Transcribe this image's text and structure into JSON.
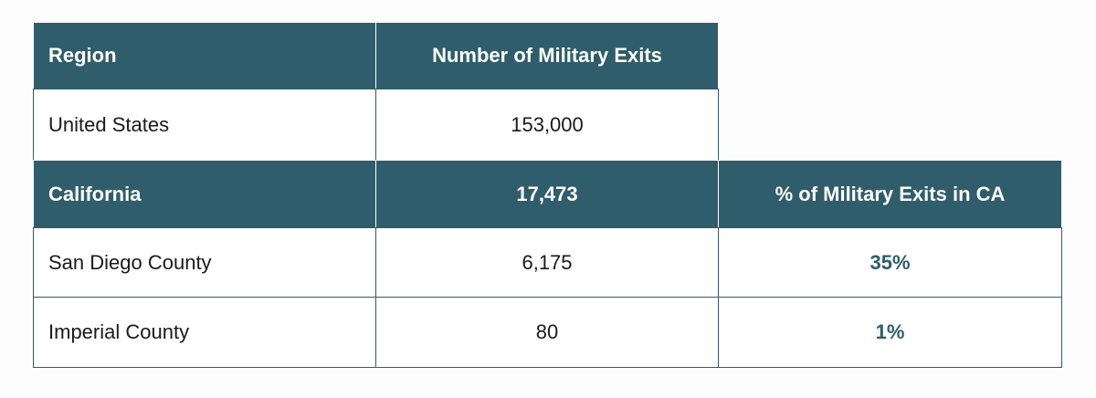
{
  "colors": {
    "header_bg": "#2f5d6b",
    "accent": "#2f5d6b"
  },
  "table": {
    "header": [
      "Region",
      "Number of Military Exits"
    ],
    "rows": [
      {
        "region": "United States",
        "exits": "153,000"
      },
      {
        "region": "California",
        "exits": "17,473",
        "pct_header": "% of Military Exits in CA"
      },
      {
        "region": "San Diego County",
        "exits": "6,175",
        "pct": "35%"
      },
      {
        "region": "Imperial County",
        "exits": "80",
        "pct": "1%"
      }
    ]
  }
}
